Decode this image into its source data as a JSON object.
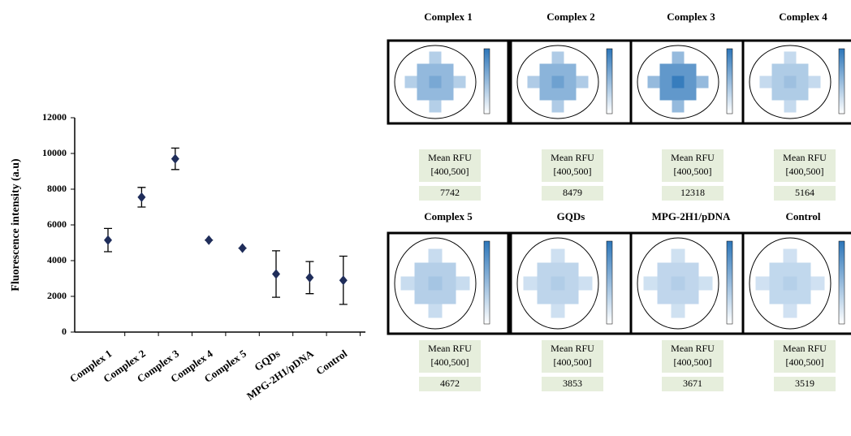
{
  "chart_data": {
    "type": "errorbar",
    "ylabel": "Fluorescence intensity (a.u)",
    "categories": [
      "Complex 1",
      "Complex 2",
      "Complex 3",
      "Complex 4",
      "Complex 5",
      "GQDs",
      "MPG-2H1/pDNA",
      "Control"
    ],
    "values": [
      5150,
      7550,
      9700,
      5150,
      4700,
      3250,
      3050,
      2900
    ],
    "errors": [
      650,
      550,
      600,
      0,
      0,
      1300,
      900,
      1350
    ],
    "color": "#1f2d5a",
    "ylim": [
      0,
      12000
    ],
    "yticks": [
      0,
      2000,
      4000,
      6000,
      8000,
      10000,
      12000
    ]
  },
  "panels": [
    {
      "title": "Complex 1",
      "label": "Mean RFU",
      "range": "[400,500]",
      "value": 7742
    },
    {
      "title": "Complex 2",
      "label": "Mean RFU",
      "range": "[400,500]",
      "value": 8479
    },
    {
      "title": "Complex 3",
      "label": "Mean RFU",
      "range": "[400,500]",
      "value": 12318
    },
    {
      "title": "Complex 4",
      "label": "Mean RFU",
      "range": "[400,500]",
      "value": 5164
    },
    {
      "title": "Complex 5",
      "label": "Mean RFU",
      "range": "[400,500]",
      "value": 4672
    },
    {
      "title": "GQDs",
      "label": "Mean RFU",
      "range": "[400,500]",
      "value": 3853
    },
    {
      "title": "MPG-2H1/pDNA",
      "label": "Mean RFU",
      "range": "[400,500]",
      "value": 3671
    },
    {
      "title": "Control",
      "label": "Mean RFU",
      "range": "[400,500]",
      "value": 3519
    }
  ]
}
